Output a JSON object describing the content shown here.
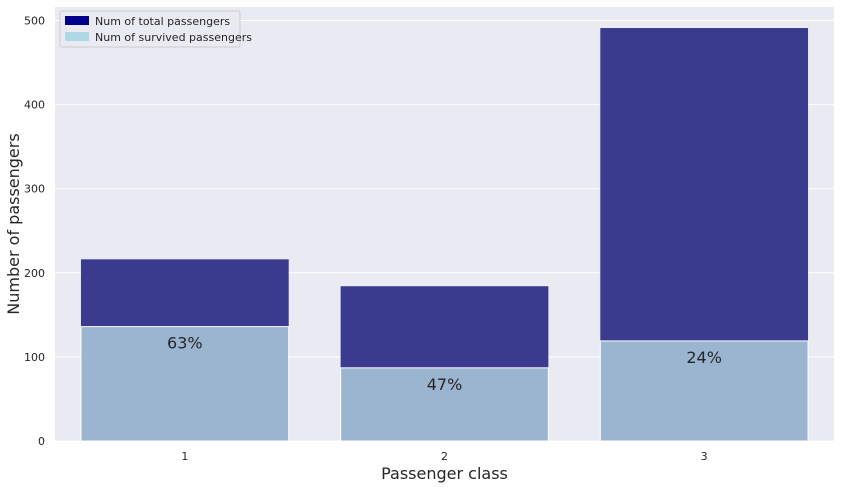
{
  "chart_data": {
    "type": "bar",
    "categories": [
      "1",
      "2",
      "3"
    ],
    "series": [
      {
        "name": "Num of total passengers",
        "values": [
          216,
          184,
          491
        ],
        "color": "#00008b"
      },
      {
        "name": "Num of survived passengers",
        "values": [
          136,
          87,
          119
        ],
        "color": "#add8e6"
      }
    ],
    "annotations": [
      "63%",
      "47%",
      "24%"
    ],
    "xlabel": "Passenger class",
    "ylabel": "Number of passengers",
    "ylim": [
      0,
      516
    ],
    "yticks": [
      0,
      100,
      200,
      300,
      400,
      500
    ],
    "grid": true,
    "legend": "top-left",
    "style": {
      "background": "#eaeaf2",
      "grid_color": "#ffffff",
      "total_bar_color": "#3a3a8f",
      "survived_bar_color": "#9bb5d0"
    }
  }
}
